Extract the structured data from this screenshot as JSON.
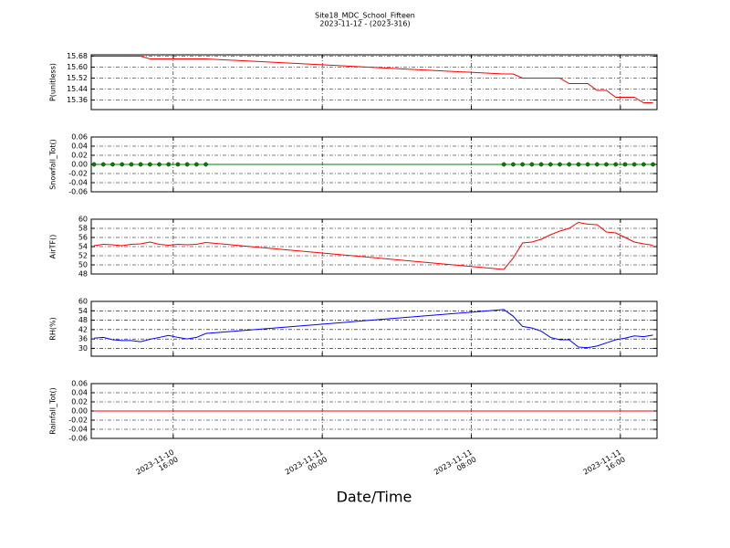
{
  "chart_data": {
    "type": "line",
    "title": "Site18_MDC_School_Fifteen",
    "subtitle": "2023-11-12 - (2023-316)",
    "xlabel": "Date/Time",
    "grid": true,
    "xlim": [
      "2023-11-10 11:36",
      "2023-11-11 17:58"
    ],
    "xticks": [
      "2023-11-10 16:00",
      "2023-11-11 00:00",
      "2023-11-11 08:00",
      "2023-11-11 16:00"
    ],
    "x": [
      "2023-11-10 11:45",
      "2023-11-10 12:15",
      "2023-11-10 12:45",
      "2023-11-10 13:15",
      "2023-11-10 13:45",
      "2023-11-10 14:15",
      "2023-11-10 14:45",
      "2023-11-10 15:15",
      "2023-11-10 15:45",
      "2023-11-10 16:15",
      "2023-11-10 16:45",
      "2023-11-10 17:15",
      "2023-11-10 17:45",
      "2023-11-11 09:45",
      "2023-11-11 10:15",
      "2023-11-11 10:45",
      "2023-11-11 11:15",
      "2023-11-11 11:45",
      "2023-11-11 12:15",
      "2023-11-11 12:45",
      "2023-11-11 13:15",
      "2023-11-11 13:45",
      "2023-11-11 14:15",
      "2023-11-11 14:45",
      "2023-11-11 15:15",
      "2023-11-11 15:45",
      "2023-11-11 16:15",
      "2023-11-11 16:45",
      "2023-11-11 17:15",
      "2023-11-11 17:45"
    ],
    "panels": [
      {
        "ylabel": "P(unitless)",
        "ylim": [
          15.29,
          15.69
        ],
        "yticks": [
          15.36,
          15.44,
          15.52,
          {
            "value": 15.6,
            "label": "15.60"
          },
          15.68
        ],
        "series": [
          {
            "color": "#ff0000",
            "marker": false,
            "values": [
              15.68,
              15.68,
              15.68,
              15.68,
              15.68,
              15.68,
              15.66,
              15.66,
              15.66,
              15.66,
              15.66,
              15.66,
              15.66,
              15.55,
              15.55,
              15.52,
              15.52,
              15.52,
              15.52,
              15.52,
              15.48,
              15.48,
              15.48,
              15.43,
              15.43,
              15.38,
              15.38,
              15.38,
              15.34,
              15.34
            ]
          }
        ]
      },
      {
        "ylabel": "Snowfall_Tot()",
        "ylim": [
          -0.06,
          0.06
        ],
        "yticks": [
          -0.06,
          -0.04,
          -0.02,
          {
            "value": 0,
            "label": "0.00"
          },
          0.02,
          0.04,
          0.06
        ],
        "series": [
          {
            "color": "#008000",
            "marker": true,
            "values": [
              0,
              0,
              0,
              0,
              0,
              0,
              0,
              0,
              0,
              0,
              0,
              0,
              0,
              0,
              0,
              0,
              0,
              0,
              0,
              0,
              0,
              0,
              0,
              0,
              0,
              0,
              0,
              0,
              0,
              0
            ]
          }
        ]
      },
      {
        "ylabel": "AirTF()",
        "ylim": [
          48,
          60
        ],
        "yticks": [
          48,
          50,
          52,
          54,
          56,
          58,
          60
        ],
        "series": [
          {
            "color": "#ff0000",
            "marker": false,
            "values": [
              54.2,
              54.5,
              54.4,
              54.2,
              54.5,
              54.6,
              55,
              54.5,
              54.3,
              54.5,
              54.4,
              54.5,
              54.9,
              49.0,
              51.5,
              54.8,
              55,
              55.6,
              56.6,
              57.4,
              58,
              59.3,
              58.9,
              58.8,
              57.2,
              57,
              56,
              55,
              54.6,
              54.3
            ]
          }
        ]
      },
      {
        "ylabel": "RH(%)",
        "ylim": [
          25,
          60
        ],
        "yticks": [
          30,
          36,
          42,
          48,
          54,
          60
        ],
        "series": [
          {
            "color": "#0000ff",
            "marker": false,
            "values": [
              36.5,
              37,
              35.5,
              35,
              35,
              34.3,
              35.8,
              37,
              38.3,
              37,
              36,
              37,
              39.5,
              54.8,
              50.5,
              44,
              43,
              41,
              37,
              35.5,
              35.5,
              30.8,
              30.5,
              31.5,
              33.5,
              35.5,
              36.5,
              38,
              37.5,
              38.5
            ]
          }
        ]
      },
      {
        "ylabel": "Rainfall_Tot()",
        "ylim": [
          -0.06,
          0.06
        ],
        "yticks": [
          -0.06,
          -0.04,
          -0.02,
          {
            "value": 0,
            "label": "0.00"
          },
          0.02,
          0.04,
          0.06
        ],
        "series": [
          {
            "color": "#ff0000",
            "marker": false,
            "values": [
              0,
              0,
              0,
              0,
              0,
              0,
              0,
              0,
              0,
              0,
              0,
              0,
              0,
              0,
              0,
              0,
              0,
              0,
              0,
              0,
              0,
              0,
              0,
              0,
              0,
              0,
              0,
              0,
              0,
              0
            ]
          }
        ]
      }
    ]
  }
}
